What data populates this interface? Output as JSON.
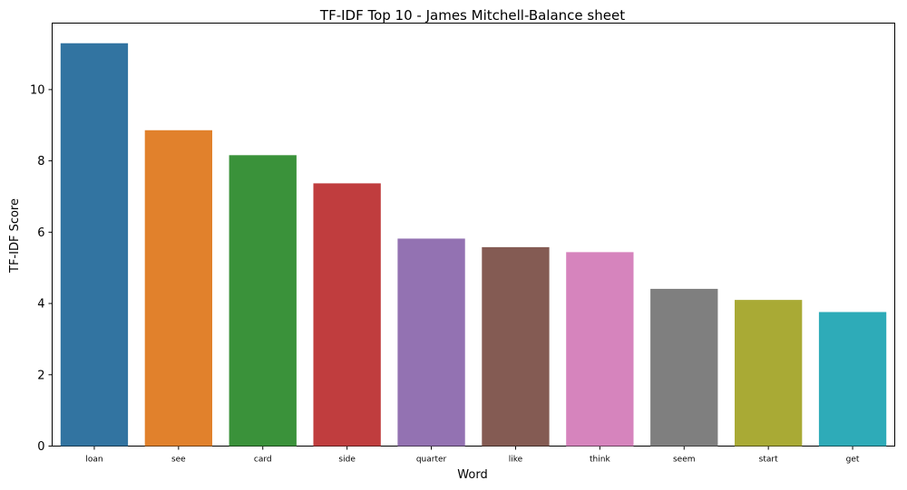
{
  "chart_data": {
    "type": "bar",
    "title": "TF-IDF Top 10 - James Mitchell-Balance sheet",
    "xlabel": "Word",
    "ylabel": "TF-IDF Score",
    "categories": [
      "loan",
      "see",
      "card",
      "side",
      "quarter",
      "like",
      "think",
      "seem",
      "start",
      "get"
    ],
    "values": [
      11.3,
      8.86,
      8.16,
      7.37,
      5.82,
      5.58,
      5.44,
      4.41,
      4.1,
      3.76
    ],
    "colors": [
      "#3274a1",
      "#e1812c",
      "#3a923a",
      "#c03d3e",
      "#9372b2",
      "#845b53",
      "#d684bd",
      "#7f7f7f",
      "#a9aa35",
      "#2eabb8"
    ],
    "ylim": [
      0,
      11.865
    ],
    "yticks": [
      0,
      2,
      4,
      6,
      8,
      10
    ],
    "ytick_labels": [
      "0",
      "2",
      "4",
      "6",
      "8",
      "10"
    ],
    "grid": false,
    "legend": "none"
  }
}
